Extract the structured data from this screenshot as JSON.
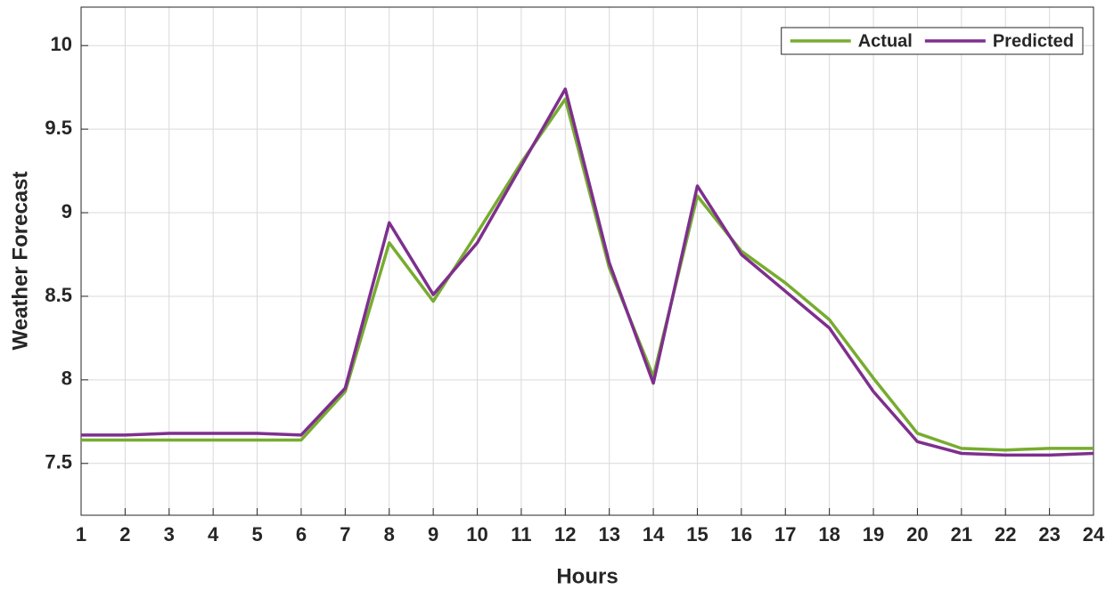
{
  "chart_data": {
    "type": "line",
    "x_label": "Hours",
    "y_label": "Weather Forecast",
    "x": [
      1,
      2,
      3,
      4,
      5,
      6,
      7,
      8,
      9,
      10,
      11,
      12,
      13,
      14,
      15,
      16,
      17,
      18,
      19,
      20,
      21,
      22,
      23,
      24
    ],
    "series": [
      {
        "name": "Actual",
        "color": "#77ac30",
        "values": [
          7.64,
          7.64,
          7.64,
          7.64,
          7.64,
          7.64,
          7.93,
          8.82,
          8.47,
          8.88,
          9.3,
          9.68,
          8.67,
          8.02,
          9.1,
          8.77,
          8.58,
          8.36,
          8.01,
          7.68,
          7.59,
          7.58,
          7.59,
          7.59
        ]
      },
      {
        "name": "Predicted",
        "color": "#7e2f8e",
        "values": [
          7.67,
          7.67,
          7.68,
          7.68,
          7.68,
          7.67,
          7.95,
          8.94,
          8.51,
          8.82,
          9.28,
          9.74,
          8.7,
          7.98,
          9.16,
          8.75,
          8.53,
          8.31,
          7.93,
          7.63,
          7.56,
          7.55,
          7.55,
          7.56
        ]
      }
    ],
    "xlim": [
      1,
      24
    ],
    "xticks": [
      1,
      2,
      3,
      4,
      5,
      6,
      7,
      8,
      9,
      10,
      11,
      12,
      13,
      14,
      15,
      16,
      17,
      18,
      19,
      20,
      21,
      22,
      23,
      24
    ],
    "ylim": [
      7.19,
      10.23
    ],
    "yticks": [
      7.5,
      8,
      8.5,
      9,
      9.5,
      10
    ],
    "grid": true,
    "legend": "northeast"
  }
}
